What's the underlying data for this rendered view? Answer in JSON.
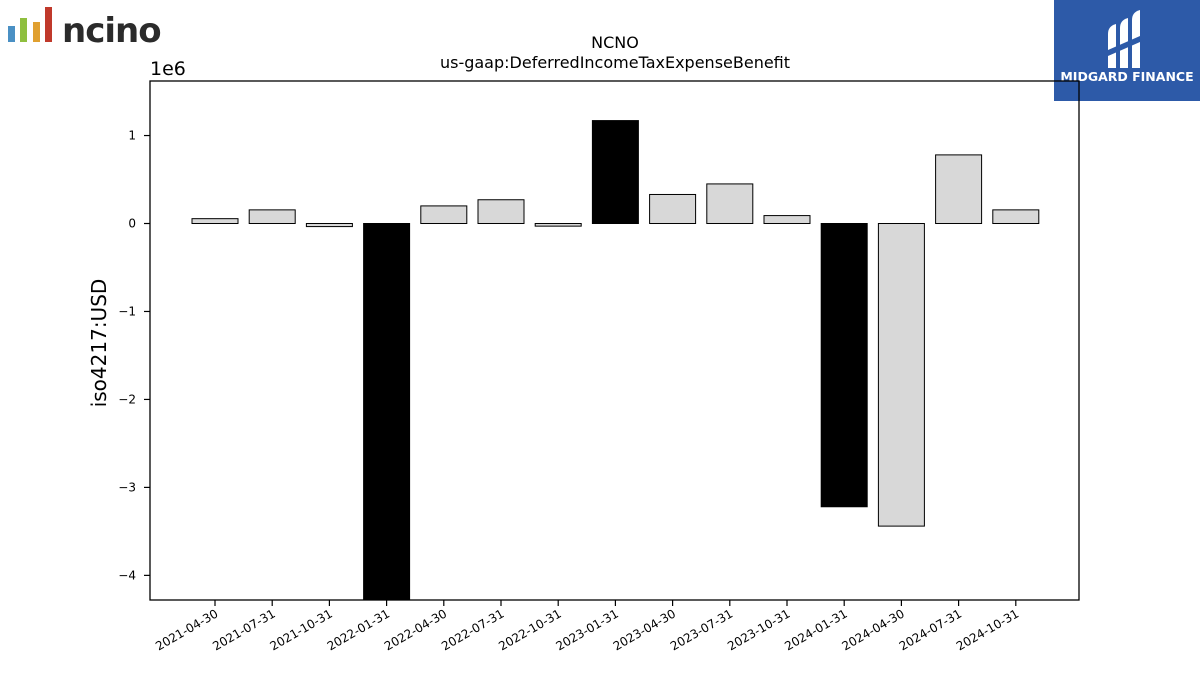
{
  "logos": {
    "left_brand": "ncino",
    "right_brand": "MIDGARD FINANCE",
    "left_bar_colors": [
      "#4a90c4",
      "#8fbf3f",
      "#e0a030",
      "#c0392b"
    ],
    "right_bg_color": "#2d5aa8"
  },
  "chart_data": {
    "type": "bar",
    "title": "NCNO",
    "subtitle": "us-gaap:DeferredIncomeTaxExpenseBenefit",
    "xlabel": "",
    "ylabel": "iso4217:USD",
    "y_offset_label": "1e6",
    "y_scale": 1000000,
    "ylim": [
      -4.28,
      1.62
    ],
    "yticks": [
      1,
      0,
      -1,
      -2,
      -3,
      -4
    ],
    "ytick_labels": [
      "1",
      "0",
      "−1",
      "−2",
      "−3",
      "−4"
    ],
    "categories": [
      "2021-04-30",
      "2021-07-31",
      "2021-10-31",
      "2022-01-31",
      "2022-04-30",
      "2022-07-31",
      "2022-10-31",
      "2023-01-31",
      "2023-04-30",
      "2023-07-31",
      "2023-10-31",
      "2024-01-31",
      "2024-04-30",
      "2024-07-31",
      "2024-10-31"
    ],
    "values": [
      55000,
      155000,
      -35000,
      -4280000,
      200000,
      270000,
      -30000,
      1170000,
      330000,
      450000,
      90000,
      -3220000,
      -3440000,
      780000,
      155000
    ],
    "highlight": [
      false,
      false,
      false,
      true,
      false,
      false,
      false,
      true,
      false,
      false,
      false,
      true,
      false,
      false,
      false
    ],
    "colors": {
      "normal": "#d8d8d8",
      "highlight": "#000000",
      "edge": "#000000"
    },
    "grid": false,
    "legend": "none"
  }
}
